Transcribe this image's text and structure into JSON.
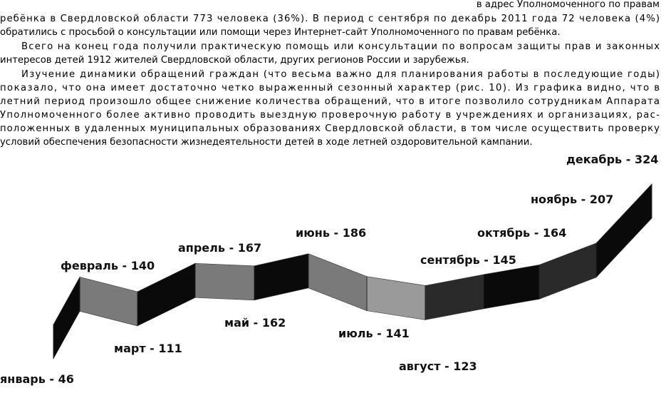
{
  "text": {
    "lines": [
      "в адрес Уполномоченного по правам",
      "ребёнка в Свердловской области 773 человека (36%). В период с сентября по декабрь 2011 года 72 человека (4%)",
      "обратились с просьбой о консультации или помощи через Интернет-сайт Уполномоченного по правам ребёнка.",
      "Всего на конец года получили практическую помощь или консультации по вопросам защиты прав и законных",
      "интересов детей 1912 жителей Свердловской области, других регионов России и зарубежья.",
      "Изучение динамики обращений граждан (что весьма важно для планирования работы в последующие годы)",
      "показало, что она имеет достаточно четко выраженный сезонный характер (рис. 10). Из графика видно, что в",
      "летний период произошло общее снижение количества обращений, что в итоге позволило сотрудникам Аппарата",
      "Уполномоченного более активно проводить выездную проверочную работу в учреждениях и организациях, рас-",
      "положенных в удаленных муниципальных образованиях Свердловской области, в том числе осуществить проверку",
      "условий обеспечения безопасности жизнедеятельности детей в ходе летней оздоровительной кампании."
    ]
  },
  "chart_data": {
    "type": "ribbon",
    "categories": [
      "январь",
      "февраль",
      "март",
      "апрель",
      "май",
      "июнь",
      "июль",
      "август",
      "сентябрь",
      "октябрь",
      "ноябрь",
      "декабрь"
    ],
    "values": [
      46,
      140,
      111,
      167,
      162,
      186,
      141,
      123,
      145,
      164,
      207,
      324
    ],
    "value_labels": [
      "январь - 46",
      "февраль - 140",
      "март - 111",
      "апрель - 167",
      "май - 162",
      "июнь - 186",
      "июль - 141",
      "август - 123",
      "сентябрь - 145",
      "октябрь - 164",
      "ноябрь - 207",
      "декабрь - 324"
    ]
  }
}
